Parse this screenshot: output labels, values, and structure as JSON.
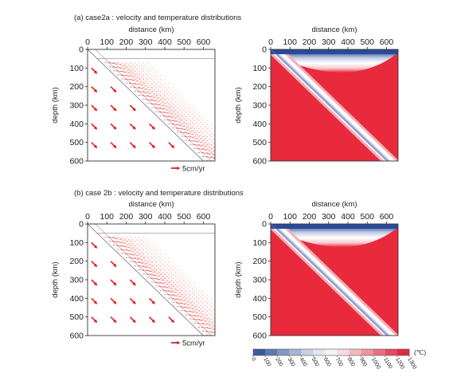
{
  "chart_data": [
    {
      "type": "quiver",
      "title": "(a) case2a : velocity and temperature distributions",
      "xlabel": "distance (km)",
      "ylabel": "depth (km)",
      "xlim": [
        0,
        660
      ],
      "ylim": [
        600,
        0
      ],
      "x_ticks": [
        "0",
        "100",
        "200",
        "300",
        "400",
        "500",
        "600"
      ],
      "y_ticks": [
        "0",
        "100",
        "200",
        "300",
        "400",
        "500",
        "600"
      ],
      "slab_dip_deg": 45,
      "plate_base_depth_km": 50,
      "scale_label": "5cm/yr",
      "scale_speed_cm_yr": 5
    },
    {
      "type": "heatmap",
      "xlabel": "distance (km)",
      "ylabel": "depth (km)",
      "xlim": [
        0,
        660
      ],
      "ylim": [
        600,
        0
      ],
      "x_ticks": [
        "0",
        "100",
        "200",
        "300",
        "400",
        "500",
        "600"
      ],
      "y_ticks": [
        "0",
        "100",
        "200",
        "300",
        "400",
        "500",
        "600"
      ],
      "variable": "temperature"
    },
    {
      "type": "quiver",
      "title": "(b) case 2b : velocity and temperature distributions",
      "xlabel": "distance (km)",
      "ylabel": "depth (km)",
      "xlim": [
        0,
        660
      ],
      "ylim": [
        600,
        0
      ],
      "x_ticks": [
        "0",
        "100",
        "200",
        "300",
        "400",
        "500",
        "600"
      ],
      "y_ticks": [
        "0",
        "100",
        "200",
        "300",
        "400",
        "500",
        "600"
      ],
      "slab_dip_deg": 45,
      "plate_base_depth_km": 50,
      "scale_label": "5cm/yr",
      "scale_speed_cm_yr": 5
    },
    {
      "type": "heatmap",
      "xlabel": "distance (km)",
      "ylabel": "depth (km)",
      "xlim": [
        0,
        660
      ],
      "ylim": [
        600,
        0
      ],
      "x_ticks": [
        "0",
        "100",
        "200",
        "300",
        "400",
        "500",
        "600"
      ],
      "y_ticks": [
        "0",
        "100",
        "200",
        "300",
        "400",
        "500",
        "600"
      ],
      "variable": "temperature"
    }
  ],
  "colorbar": {
    "ticks": [
      "0",
      "100",
      "200",
      "300",
      "400",
      "500",
      "600",
      "700",
      "800",
      "900",
      "1000",
      "1100",
      "1200",
      "1300"
    ],
    "unit": "(℃)",
    "colors": [
      "#3a5ba0",
      "#5e78b3",
      "#8395c4",
      "#a8b3d5",
      "#c8cfe4",
      "#e3e6f1",
      "#f5f2f3",
      "#f8dcdf",
      "#f3b8bf",
      "#ee95a0",
      "#e8707f",
      "#e24c5e",
      "#dd2b3f"
    ]
  }
}
